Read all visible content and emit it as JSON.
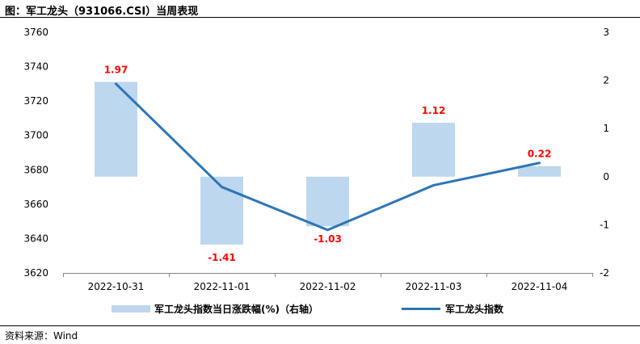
{
  "title": "图：军工龙头（931066.CSI）当周表现",
  "source": "资料来源：Wind",
  "chart_data": {
    "type": "bar+line",
    "categories": [
      "2022-10-31",
      "2022-11-01",
      "2022-11-02",
      "2022-11-03",
      "2022-11-04"
    ],
    "series": [
      {
        "name": "军工龙头指数当日涨跌幅(%)（右轴）",
        "type": "bar",
        "axis": "right",
        "values": [
          1.97,
          -1.41,
          -1.03,
          1.12,
          0.22
        ],
        "labels": [
          "1.97",
          "-1.41",
          "-1.03",
          "1.12",
          "0.22"
        ],
        "color": "#bdd7ee"
      },
      {
        "name": "军工龙头指数",
        "type": "line",
        "axis": "left",
        "values": [
          3730,
          3670,
          3645,
          3671,
          3684
        ],
        "color": "#2e75b6"
      }
    ],
    "y_left": {
      "min": 3620,
      "max": 3760,
      "ticks": [
        "3620",
        "3640",
        "3660",
        "3680",
        "3700",
        "3720",
        "3740",
        "3760"
      ]
    },
    "y_right": {
      "min": -2,
      "max": 3,
      "ticks": [
        "-2",
        "-1",
        "0",
        "1",
        "2",
        "3"
      ]
    },
    "legend": [
      "军工龙头指数当日涨跌幅(%)（右轴）",
      "军工龙头指数"
    ],
    "legend_position": "bottom"
  }
}
